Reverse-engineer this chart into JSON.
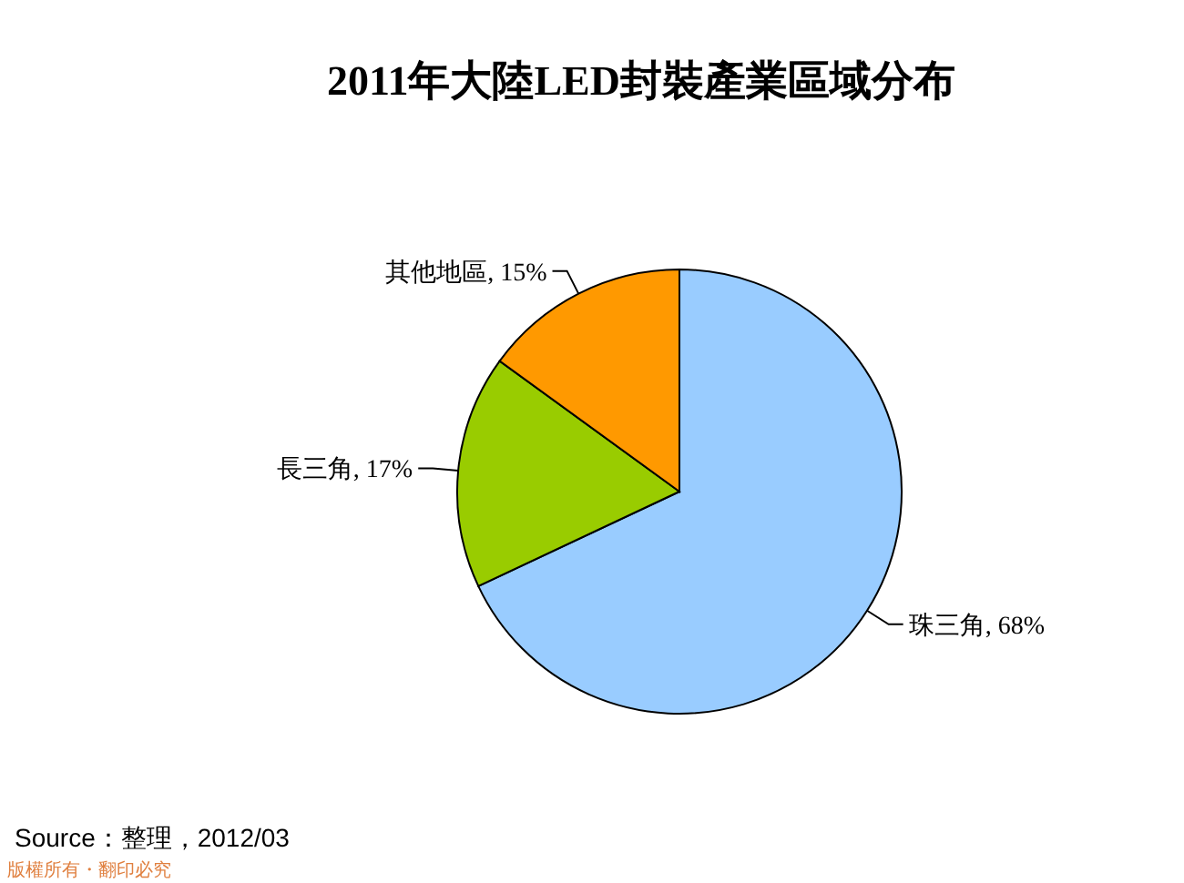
{
  "chart_data": {
    "type": "pie",
    "title": "2011年大陸LED封裝產業區域分布",
    "categories": [
      "珠三角",
      "長三角",
      "其他地區"
    ],
    "values": [
      68,
      17,
      15
    ],
    "colors": [
      "#99ccff",
      "#99cc00",
      "#ff9900"
    ],
    "value_labels": [
      ", 68%",
      ", 17%",
      ", 15%"
    ],
    "annotations": [
      "Source：整理，2012/03",
      "版權所有・翻印必究"
    ]
  }
}
